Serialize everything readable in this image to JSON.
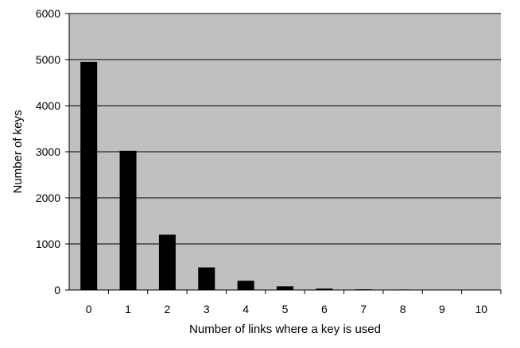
{
  "chart_data": {
    "type": "bar",
    "title": "",
    "xlabel": "Number of links where a key is used",
    "ylabel": "Number of keys",
    "categories": [
      "0",
      "1",
      "2",
      "3",
      "4",
      "5",
      "6",
      "7",
      "8",
      "9",
      "10"
    ],
    "values": [
      4950,
      3020,
      1200,
      490,
      200,
      80,
      30,
      15,
      10,
      0,
      0
    ],
    "ylim": [
      0,
      6000
    ],
    "yticks": [
      0,
      1000,
      2000,
      3000,
      4000,
      5000,
      6000
    ],
    "yticks_labels": [
      "0",
      "1000",
      "2000",
      "3000",
      "4000",
      "5000",
      "6000"
    ],
    "grid": "horizontal",
    "legend": "none",
    "colors": {
      "plot_background": "#c0c0c0",
      "bar": "#000000",
      "gridline": "#000000"
    }
  }
}
